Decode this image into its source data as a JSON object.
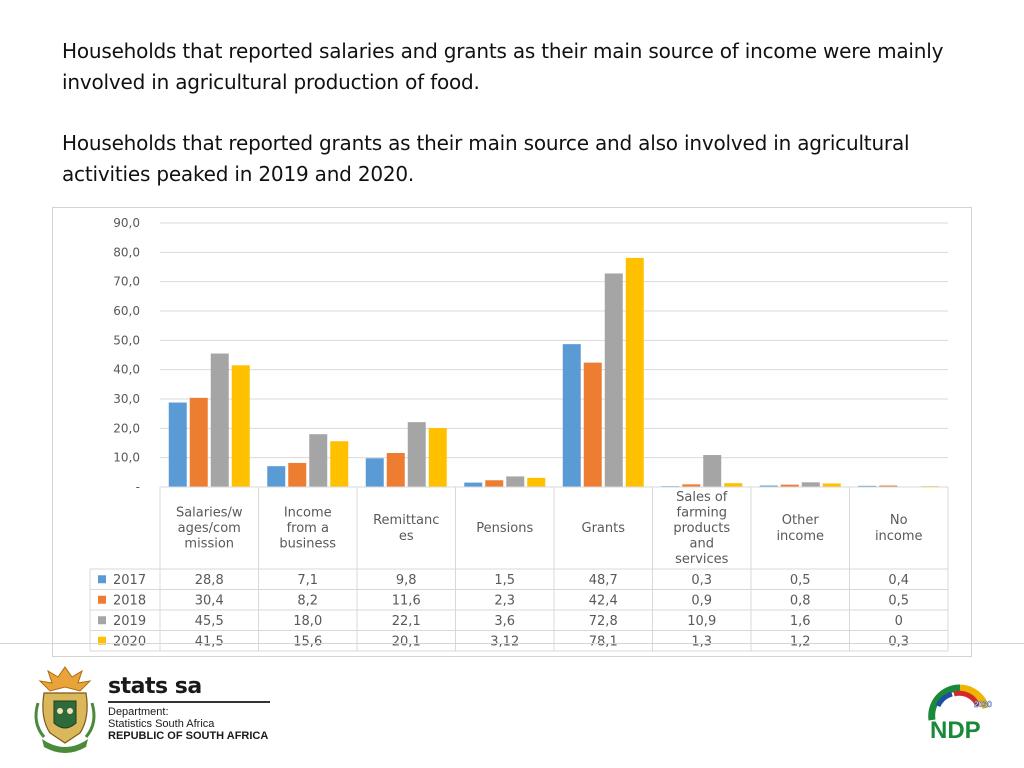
{
  "text": {
    "paragraph1": "Households that reported salaries and grants as their main source of income were mainly involved in agricultural production of food.",
    "paragraph2": "Households that reported grants as their main source and also involved in agricultural activities peaked in 2019 and 2020."
  },
  "footer": {
    "brand": "stats sa",
    "dept_line1": "Department:",
    "dept_line2": "Statistics South Africa",
    "dept_line3": "REPUBLIC OF SOUTH AFRICA",
    "ndp_label": "NDP",
    "ndp_year": "2030"
  },
  "chart_data": {
    "type": "bar",
    "title": "",
    "xlabel": "",
    "ylabel": "",
    "ylim": [
      0,
      90
    ],
    "yticks": [
      "",
      "10,0",
      "20,0",
      "30,0",
      "40,0",
      "50,0",
      "60,0",
      "70,0",
      "80,0",
      "90,0"
    ],
    "grid": true,
    "legend": "data-table",
    "categories": [
      [
        "Salaries/w",
        "ages/com",
        "mission"
      ],
      [
        "Income",
        "from a",
        "business"
      ],
      [
        "Remittanc",
        "es"
      ],
      [
        "Pensions"
      ],
      [
        "Grants"
      ],
      [
        "Sales of",
        "farming",
        "products",
        "and",
        "services"
      ],
      [
        "Other",
        "income"
      ],
      [
        "No",
        "income"
      ]
    ],
    "series": [
      {
        "name": "2017",
        "color": "#5b9bd5",
        "values": [
          28.8,
          7.1,
          9.8,
          1.5,
          48.7,
          0.3,
          0.5,
          0.4
        ],
        "labels": [
          "28,8",
          "7,1",
          "9,8",
          "1,5",
          "48,7",
          "0,3",
          "0,5",
          "0,4"
        ]
      },
      {
        "name": "2018",
        "color": "#ed7d31",
        "values": [
          30.4,
          8.2,
          11.6,
          2.3,
          42.4,
          0.9,
          0.8,
          0.5
        ],
        "labels": [
          "30,4",
          "8,2",
          "11,6",
          "2,3",
          "42,4",
          "0,9",
          "0,8",
          "0,5"
        ]
      },
      {
        "name": "2019",
        "color": "#a5a5a5",
        "values": [
          45.5,
          18.0,
          22.1,
          3.6,
          72.8,
          10.9,
          1.6,
          0
        ],
        "labels": [
          "45,5",
          "18,0",
          "22,1",
          "3,6",
          "72,8",
          "10,9",
          "1,6",
          "0"
        ]
      },
      {
        "name": "2020",
        "color": "#ffc000",
        "values": [
          41.5,
          15.6,
          20.1,
          3.12,
          78.1,
          1.3,
          1.2,
          0.3
        ],
        "labels": [
          "41,5",
          "15,6",
          "20,1",
          "3,12",
          "78,1",
          "1,3",
          "1,2",
          "0,3"
        ]
      }
    ]
  }
}
